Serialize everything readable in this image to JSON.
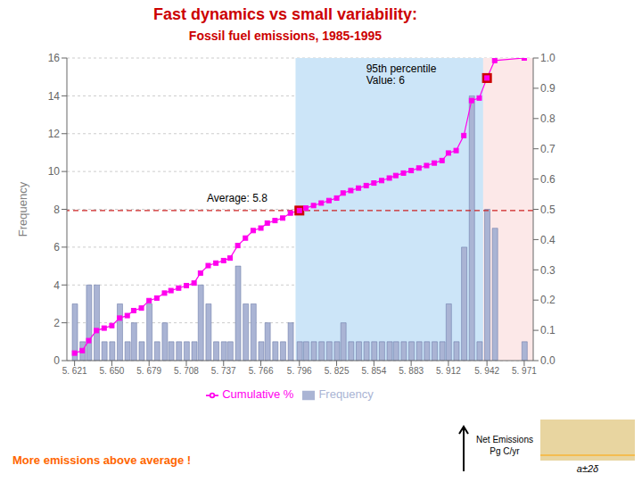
{
  "chart_data": {
    "type": "bar",
    "title": "Fast dynamics vs small variability:",
    "subtitle": "Fossil fuel emissions,  1985-1995",
    "title_color": "#cc0000",
    "subtitle_color": "#cc0000",
    "x": [
      5.621,
      5.627,
      5.632,
      5.638,
      5.644,
      5.65,
      5.656,
      5.662,
      5.667,
      5.673,
      5.679,
      5.685,
      5.691,
      5.696,
      5.702,
      5.708,
      5.714,
      5.719,
      5.725,
      5.731,
      5.737,
      5.742,
      5.748,
      5.754,
      5.76,
      5.766,
      5.771,
      5.777,
      5.783,
      5.789,
      5.796,
      5.801,
      5.807,
      5.813,
      5.819,
      5.825,
      5.83,
      5.836,
      5.842,
      5.848,
      5.854,
      5.86,
      5.866,
      5.871,
      5.877,
      5.883,
      5.889,
      5.895,
      5.901,
      5.907,
      5.912,
      5.918,
      5.924,
      5.93,
      5.936,
      5.942,
      5.948,
      5.971
    ],
    "series": [
      {
        "name": "Frequency",
        "type": "bar",
        "color": "#aab4d4",
        "edge_color": "#6070a0",
        "values": [
          3,
          1,
          4,
          4,
          1,
          1,
          3,
          1,
          2,
          1,
          3,
          1,
          2,
          1,
          1,
          1,
          1,
          4,
          3,
          1,
          1,
          1,
          5,
          3,
          3,
          1,
          2,
          1,
          1,
          2,
          1,
          1,
          1,
          1,
          1,
          1,
          2,
          1,
          1,
          1,
          1,
          1,
          1,
          1,
          1,
          1,
          1,
          1,
          1,
          1,
          3,
          1,
          6,
          14,
          1,
          8,
          7,
          1
        ]
      },
      {
        "name": "Cumulative %",
        "type": "line",
        "color": "#ff00ee",
        "marker": "square",
        "line_style": "solid",
        "axis": "y2",
        "values": [
          0.0248,
          0.0331,
          0.0661,
          0.0992,
          0.1074,
          0.1157,
          0.1405,
          0.1488,
          0.1653,
          0.1736,
          0.1983,
          0.2066,
          0.2231,
          0.2314,
          0.2397,
          0.2479,
          0.2562,
          0.2893,
          0.314,
          0.3223,
          0.3306,
          0.3388,
          0.3802,
          0.405,
          0.4298,
          0.438,
          0.4545,
          0.4628,
          0.4711,
          0.4876,
          0.4959,
          0.5041,
          0.5124,
          0.5207,
          0.5289,
          0.5372,
          0.5537,
          0.562,
          0.5702,
          0.5785,
          0.5868,
          0.595,
          0.6033,
          0.6116,
          0.6198,
          0.6281,
          0.6364,
          0.6446,
          0.6529,
          0.6612,
          0.686,
          0.6942,
          0.7438,
          0.8595,
          0.8678,
          0.9339,
          0.9917,
          1
        ]
      }
    ],
    "xlim": [
      5.615,
      5.978
    ],
    "xticks": [
      {
        "value": 5.621,
        "label": "5. 621"
      },
      {
        "value": 5.65,
        "label": "5. 650"
      },
      {
        "value": 5.679,
        "label": "5. 679"
      },
      {
        "value": 5.708,
        "label": "5. 708"
      },
      {
        "value": 5.737,
        "label": "5. 737"
      },
      {
        "value": 5.766,
        "label": "5. 766"
      },
      {
        "value": 5.796,
        "label": "5. 796"
      },
      {
        "value": 5.825,
        "label": "5. 825"
      },
      {
        "value": 5.854,
        "label": "5. 854"
      },
      {
        "value": 5.883,
        "label": "5. 883"
      },
      {
        "value": 5.912,
        "label": "5. 912"
      },
      {
        "value": 5.942,
        "label": "5. 942"
      },
      {
        "value": 5.971,
        "label": "5. 971"
      }
    ],
    "ylim": [
      0,
      16
    ],
    "yticks": [
      0,
      2,
      4,
      6,
      8,
      10,
      12,
      14,
      16
    ],
    "y_label": "Frequency",
    "y2lim": [
      0,
      1
    ],
    "y2ticks": [
      {
        "value": 0,
        "label": "0.0"
      },
      0.1,
      0.2,
      0.3,
      0.4,
      0.5,
      0.6,
      0.7,
      0.8,
      0.9,
      {
        "value": 1,
        "label": "1.0"
      }
    ],
    "grid": true,
    "legend": "bottom",
    "shaded_regions": [
      {
        "x1": 5.793,
        "x2": 5.975,
        "color": "#cce5f8"
      },
      {
        "x1": 5.939,
        "x2": 5.978,
        "color": "#fce8e8"
      }
    ],
    "reference_lines": [
      {
        "y": 0.4959,
        "axis": "y2",
        "color": "#cc2222",
        "line_style": "dashed"
      }
    ],
    "highlight_points": [
      {
        "x": 5.796,
        "y": 0.4959,
        "axis": "y2",
        "color": "#cc0000",
        "marker": "square"
      },
      {
        "x": 5.942,
        "y": 0.9339,
        "axis": "y2",
        "color": "#cc0000",
        "marker": "square"
      }
    ],
    "annotations": [
      {
        "text": "Average: 5.8",
        "x": 5.724,
        "y": 8.4
      },
      {
        "text": "95th percentile\nValue: 6",
        "x": 5.848,
        "y": 0.915,
        "axis": "y2"
      }
    ],
    "notes": [
      {
        "text": "More emissions above average !",
        "color": "#ff6600"
      },
      {
        "text": "Net Emissions\nPg C/yr"
      },
      {
        "text": "a±2δ"
      }
    ]
  }
}
